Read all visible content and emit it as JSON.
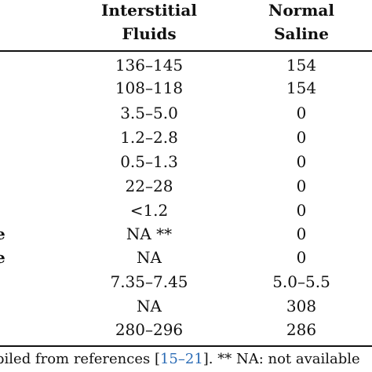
{
  "table": {
    "headers": {
      "interstitial_line1": "Interstitial",
      "interstitial_line2": "Fluids",
      "saline_line1": "Normal",
      "saline_line2": "Saline"
    },
    "row_label_fragments": [
      "e",
      "e"
    ],
    "rows": [
      {
        "interstitial": "136–145",
        "saline": "154"
      },
      {
        "interstitial": "108–118",
        "saline": "154"
      },
      {
        "interstitial": "3.5–5.0",
        "saline": "0"
      },
      {
        "interstitial": "1.2–2.8",
        "saline": "0"
      },
      {
        "interstitial": "0.5–1.3",
        "saline": "0"
      },
      {
        "interstitial": "22–28",
        "saline": "0"
      },
      {
        "interstitial": "<1.2",
        "saline": "0"
      },
      {
        "interstitial": "NA **",
        "saline": "0"
      },
      {
        "interstitial": "NA",
        "saline": "0"
      },
      {
        "interstitial": "7.35–7.45",
        "saline": "5.0–5.5"
      },
      {
        "interstitial": "NA",
        "saline": "308"
      },
      {
        "interstitial": "280–296",
        "saline": "286"
      }
    ]
  },
  "footnote": {
    "prefix": "piled from references [",
    "ref_link": "15–21",
    "suffix": "]. ** NA: not available"
  }
}
